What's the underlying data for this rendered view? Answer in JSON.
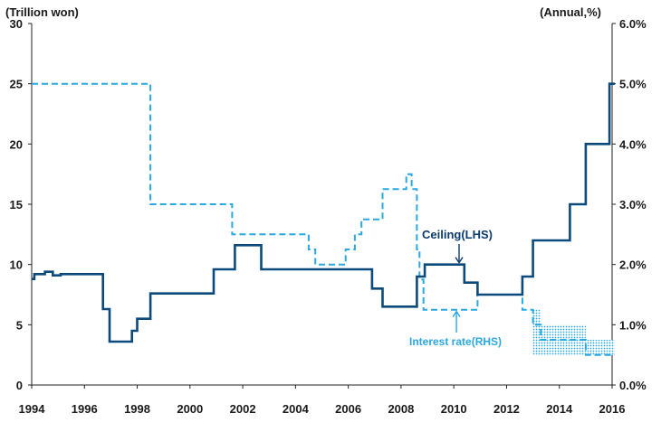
{
  "chart_data": {
    "type": "line",
    "title": "",
    "left_axis": {
      "unit_label": "(Trillion won)",
      "range": [
        0,
        30
      ],
      "ticks": [
        "0",
        "5",
        "10",
        "15",
        "20",
        "25",
        "30"
      ]
    },
    "right_axis": {
      "unit_label": "(Annual,%)",
      "range": [
        0,
        6
      ],
      "ticks": [
        "0.0%",
        "1.0%",
        "2.0%",
        "3.0%",
        "4.0%",
        "5.0%",
        "6.0%"
      ]
    },
    "x_axis": {
      "range": [
        1994,
        2016
      ],
      "ticks": [
        "1994",
        "1996",
        "1998",
        "2000",
        "2002",
        "2004",
        "2006",
        "2008",
        "2010",
        "2012",
        "2014",
        "2016"
      ]
    },
    "series": [
      {
        "name": "Ceiling(LHS)",
        "axis": "left",
        "style": "step-solid",
        "color": "#0b4a7a",
        "points": [
          [
            1994.0,
            8.8
          ],
          [
            1994.1,
            9.2
          ],
          [
            1994.5,
            9.4
          ],
          [
            1994.8,
            9.1
          ],
          [
            1995.1,
            9.2
          ],
          [
            1996.7,
            6.3
          ],
          [
            1996.95,
            3.6
          ],
          [
            1997.8,
            4.5
          ],
          [
            1998.0,
            5.5
          ],
          [
            1998.5,
            7.6
          ],
          [
            2000.9,
            9.6
          ],
          [
            2001.7,
            11.6
          ],
          [
            2002.7,
            9.6
          ],
          [
            2006.9,
            8.0
          ],
          [
            2007.3,
            6.5
          ],
          [
            2008.6,
            9.0
          ],
          [
            2008.9,
            10.0
          ],
          [
            2010.4,
            8.5
          ],
          [
            2010.9,
            7.5
          ],
          [
            2012.6,
            9.0
          ],
          [
            2013.0,
            12.0
          ],
          [
            2014.4,
            15.0
          ],
          [
            2015.0,
            20.0
          ],
          [
            2015.9,
            25.0
          ],
          [
            2016.1,
            25.0
          ]
        ]
      },
      {
        "name": "Interest rate(RHS)",
        "axis": "right",
        "style": "step-dashed",
        "color": "#2aa8e0",
        "points": [
          [
            1994.0,
            5.0
          ],
          [
            1998.5,
            3.0
          ],
          [
            2001.6,
            2.5
          ],
          [
            2004.5,
            2.25
          ],
          [
            2004.75,
            2.0
          ],
          [
            2005.9,
            2.25
          ],
          [
            2006.25,
            2.5
          ],
          [
            2006.5,
            2.75
          ],
          [
            2007.3,
            3.25
          ],
          [
            2008.2,
            3.5
          ],
          [
            2008.4,
            3.25
          ],
          [
            2008.6,
            2.25
          ],
          [
            2008.7,
            1.75
          ],
          [
            2008.85,
            1.25
          ],
          [
            2010.9,
            1.5
          ],
          [
            2012.6,
            1.25
          ],
          [
            2013.0,
            1.0
          ],
          [
            2013.3,
            0.75
          ],
          [
            2014.9,
            0.75
          ],
          [
            2015.0,
            0.5
          ],
          [
            2016.0,
            0.5
          ],
          [
            2016.1,
            0.5
          ]
        ],
        "band": {
          "color": "#2aa8e0",
          "lower": 0.5,
          "upper_points": [
            [
              2013.0,
              1.25
            ],
            [
              2013.3,
              1.0
            ],
            [
              2015.0,
              0.75
            ],
            [
              2016.1,
              0.75
            ]
          ]
        }
      }
    ],
    "annotations": [
      {
        "text": "Ceiling(LHS)",
        "series": "Ceiling(LHS)",
        "x": 2010.2,
        "y_left": 10.0,
        "arrow": "down"
      },
      {
        "text": "Interest rate(RHS)",
        "series": "Interest rate(RHS)",
        "x": 2010.1,
        "y_right": 1.25,
        "arrow": "up"
      }
    ],
    "grid": false,
    "legend": "none"
  }
}
